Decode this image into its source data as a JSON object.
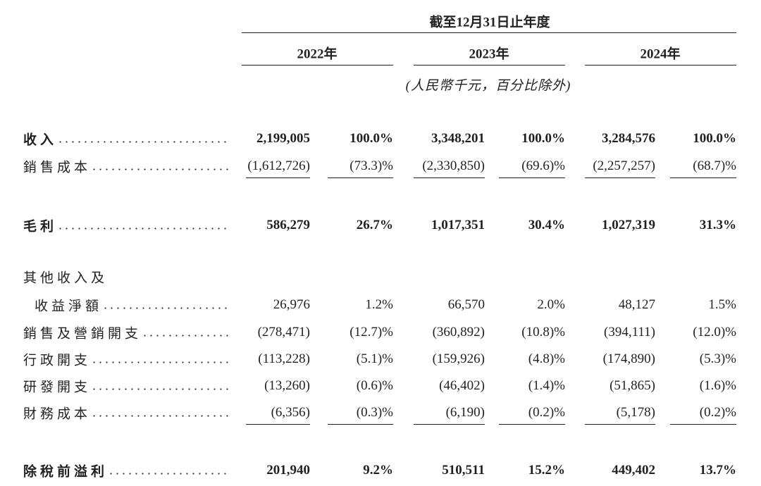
{
  "header": {
    "period": "截至12月31日止年度",
    "years": [
      "2022年",
      "2023年",
      "2024年"
    ],
    "unit": "(人民幣千元，百分比除外)"
  },
  "table": {
    "rows": [
      {
        "label": "收入",
        "values": [
          "2,199,005",
          "100.0%",
          "3,348,201",
          "100.0%",
          "3,284,576",
          "100.0%"
        ]
      },
      {
        "label": "銷售成本",
        "values": [
          "(1,612,726)",
          "(73.3)%",
          "(2,330,850)",
          "(69.6)%",
          "(2,257,257)",
          "(68.7)%"
        ]
      },
      {
        "label": "毛利",
        "values": [
          "586,279",
          "26.7%",
          "1,017,351",
          "30.4%",
          "1,027,319",
          "31.3%"
        ]
      },
      {
        "label": "其他收入及"
      },
      {
        "label": "收益淨額",
        "values": [
          "26,976",
          "1.2%",
          "66,570",
          "2.0%",
          "48,127",
          "1.5%"
        ]
      },
      {
        "label": "銷售及營銷開支",
        "values": [
          "(278,471)",
          "(12.7)%",
          "(360,892)",
          "(10.8)%",
          "(394,111)",
          "(12.0)%"
        ]
      },
      {
        "label": "行政開支",
        "values": [
          "(113,228)",
          "(5.1)%",
          "(159,926)",
          "(4.8)%",
          "(174,890)",
          "(5.3)%"
        ]
      },
      {
        "label": "研發開支",
        "values": [
          "(13,260)",
          "(0.6)%",
          "(46,402)",
          "(1.4)%",
          "(51,865)",
          "(1.6)%"
        ]
      },
      {
        "label": "財務成本",
        "values": [
          "(6,356)",
          "(0.3)%",
          "(6,190)",
          "(0.2)%",
          "(5,178)",
          "(0.2)%"
        ]
      },
      {
        "label": "除稅前溢利",
        "values": [
          "201,940",
          "9.2%",
          "510,511",
          "15.2%",
          "449,402",
          "13.7%"
        ]
      }
    ]
  }
}
